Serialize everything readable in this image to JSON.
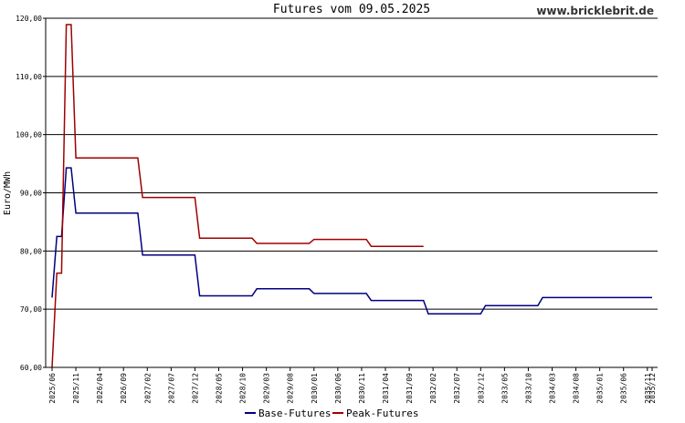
{
  "site_label": "www.bricklebrit.de",
  "chart_data": {
    "type": "line",
    "title": "Futures vom 09.05.2025",
    "ylabel": "Euro/MWh",
    "xlabel": "",
    "ylim": [
      60,
      120
    ],
    "yticks": [
      "60,00",
      "70,00",
      "80,00",
      "90,00",
      "100,00",
      "110,00",
      "120,00"
    ],
    "ytick_values": [
      60,
      70,
      80,
      90,
      100,
      110,
      120
    ],
    "xticks": [
      "2025/06",
      "2025/11",
      "2026/04",
      "2026/09",
      "2027/02",
      "2027/07",
      "2027/12",
      "2028/05",
      "2028/10",
      "2029/03",
      "2029/08",
      "2030/01",
      "2030/06",
      "2030/11",
      "2031/04",
      "2031/09",
      "2032/02",
      "2032/07",
      "2032/12",
      "2033/05",
      "2033/10",
      "2034/03",
      "2034/08",
      "2035/01",
      "2035/06",
      "2035/11",
      "2035/12"
    ],
    "grid": "horizontal",
    "legend_position": "bottom",
    "series": [
      {
        "name": "Base-Futures",
        "color": "#000080",
        "points": [
          [
            "2025-06",
            72.0
          ],
          [
            "2025-07",
            82.5
          ],
          [
            "2025-08",
            82.5
          ],
          [
            "2025-09",
            94.3
          ],
          [
            "2025-10",
            94.3
          ],
          [
            "2025-11",
            86.5
          ],
          [
            "2026-01",
            86.5
          ],
          [
            "2026-12",
            86.5
          ],
          [
            "2027-01",
            79.3
          ],
          [
            "2027-12",
            79.3
          ],
          [
            "2028-01",
            72.3
          ],
          [
            "2028-12",
            72.3
          ],
          [
            "2029-01",
            73.5
          ],
          [
            "2029-12",
            73.5
          ],
          [
            "2030-01",
            72.7
          ],
          [
            "2030-12",
            72.7
          ],
          [
            "2031-01",
            71.5
          ],
          [
            "2031-12",
            71.5
          ],
          [
            "2032-01",
            69.2
          ],
          [
            "2032-12",
            69.2
          ],
          [
            "2033-01",
            70.6
          ],
          [
            "2033-12",
            70.6
          ],
          [
            "2034-01",
            72.0
          ],
          [
            "2035-12",
            72.0
          ]
        ]
      },
      {
        "name": "Peak-Futures",
        "color": "#a00000",
        "points": [
          [
            "2025-06",
            60.0
          ],
          [
            "2025-07",
            76.2
          ],
          [
            "2025-08",
            76.2
          ],
          [
            "2025-09",
            118.9
          ],
          [
            "2025-10",
            118.9
          ],
          [
            "2025-11",
            96.0
          ],
          [
            "2026-01",
            96.0
          ],
          [
            "2026-12",
            96.0
          ],
          [
            "2027-01",
            89.2
          ],
          [
            "2027-12",
            89.2
          ],
          [
            "2028-01",
            82.2
          ],
          [
            "2028-12",
            82.2
          ],
          [
            "2029-01",
            81.3
          ],
          [
            "2029-12",
            81.3
          ],
          [
            "2030-01",
            82.0
          ],
          [
            "2030-12",
            82.0
          ],
          [
            "2031-01",
            80.8
          ],
          [
            "2031-12",
            80.8
          ]
        ]
      }
    ]
  }
}
